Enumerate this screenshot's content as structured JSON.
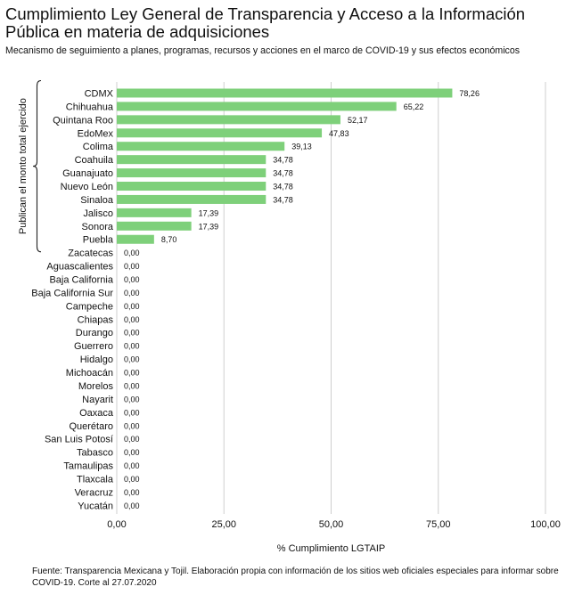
{
  "title": "Cumplimiento Ley General de Transparencia y Acceso a la Información Pública en materia de adquisiciones",
  "subtitle": "Mecanismo de seguimiento a planes, programas, recursos y acciones en el marco de COVID-19 y sus efectos económicos",
  "source": "Fuente: Transparencia Mexicana y Tojil. Elaboración propia con información de los sitios web oficiales especiales para informar sobre COVID-19. Corte al 27.07.2020",
  "chart_data": {
    "type": "bar",
    "orientation": "horizontal",
    "title": "Cumplimiento Ley General de Transparencia y Acceso a la Información Pública en materia de adquisiciones",
    "subtitle": "Mecanismo de seguimiento a planes, programas, recursos y acciones en el marco de COVID-19 y sus efectos económicos",
    "xlabel": "% Cumplimiento LGTAIP",
    "ylabel": "",
    "xlim": [
      0,
      100
    ],
    "xticks": [
      0,
      25,
      50,
      75,
      100
    ],
    "xtick_labels": [
      "0,00",
      "25,00",
      "50,00",
      "75,00",
      "100,00"
    ],
    "grid": "vertical",
    "bar_color": "#7ed07a",
    "categories": [
      "CDMX",
      "Chihuahua",
      "Quintana Roo",
      "EdoMex",
      "Colima",
      "Coahuila",
      "Guanajuato",
      "Nuevo León",
      "Sinaloa",
      "Jalisco",
      "Sonora",
      "Puebla",
      "Zacatecas",
      "Aguascalientes",
      "Baja California",
      "Baja California Sur",
      "Campeche",
      "Chiapas",
      "Durango",
      "Guerrero",
      "Hidalgo",
      "Michoacán",
      "Morelos",
      "Nayarit",
      "Oaxaca",
      "Querétaro",
      "San Luis Potosí",
      "Tabasco",
      "Tamaulipas",
      "Tlaxcala",
      "Veracruz",
      "Yucatán"
    ],
    "values": [
      78.26,
      65.22,
      52.17,
      47.83,
      39.13,
      34.78,
      34.78,
      34.78,
      34.78,
      17.39,
      17.39,
      8.7,
      0,
      0,
      0,
      0,
      0,
      0,
      0,
      0,
      0,
      0,
      0,
      0,
      0,
      0,
      0,
      0,
      0,
      0,
      0,
      0
    ],
    "value_labels": [
      "78,26",
      "65,22",
      "52,17",
      "47,83",
      "39,13",
      "34,78",
      "34,78",
      "34,78",
      "34,78",
      "17,39",
      "17,39",
      "8,70",
      "0,00",
      "0,00",
      "0,00",
      "0,00",
      "0,00",
      "0,00",
      "0,00",
      "0,00",
      "0,00",
      "0,00",
      "0,00",
      "0,00",
      "0,00",
      "0,00",
      "0,00",
      "0,00",
      "0,00",
      "0,00",
      "0,00",
      "0,00"
    ],
    "annotation": {
      "text": "Publican  el monto total ejercido",
      "from_category": "CDMX",
      "to_category": "Puebla"
    }
  }
}
